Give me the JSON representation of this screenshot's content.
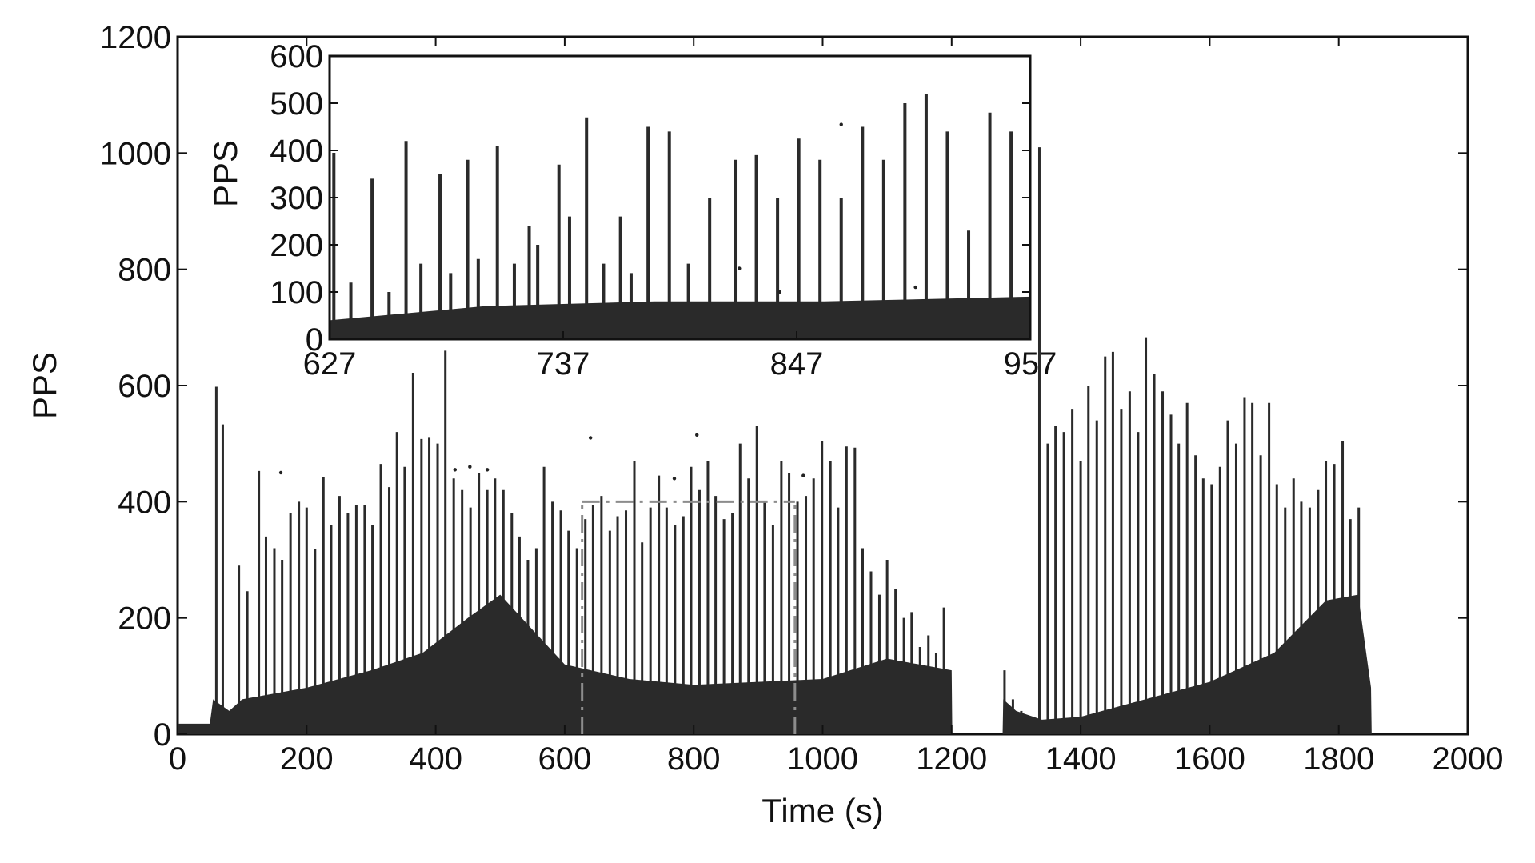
{
  "chart_data": [
    {
      "type": "bar",
      "title": "",
      "xlabel": "Time (s)",
      "ylabel": "PPS",
      "xlim": [
        0,
        2000
      ],
      "ylim": [
        0,
        1200
      ],
      "xticks": [
        "0",
        "200",
        "400",
        "600",
        "800",
        "1000",
        "1200",
        "1400",
        "1600",
        "1800",
        "2000"
      ],
      "yticks": [
        "0",
        "200",
        "400",
        "600",
        "800",
        "1000",
        "1200"
      ],
      "grid": false,
      "legend": "none",
      "bar_color": "#2a2a2a",
      "highlight_window": {
        "x": [
          627,
          957
        ],
        "y": [
          0,
          400
        ],
        "color": "#8c8c8c"
      },
      "peaks": [
        {
          "x": 60,
          "y": 598
        },
        {
          "x": 70,
          "y": 533
        },
        {
          "x": 95,
          "y": 290
        },
        {
          "x": 108,
          "y": 246
        },
        {
          "x": 126,
          "y": 453
        },
        {
          "x": 137,
          "y": 340
        },
        {
          "x": 150,
          "y": 320
        },
        {
          "x": 162,
          "y": 300
        },
        {
          "x": 175,
          "y": 380
        },
        {
          "x": 188,
          "y": 400
        },
        {
          "x": 200,
          "y": 390
        },
        {
          "x": 213,
          "y": 318
        },
        {
          "x": 226,
          "y": 443
        },
        {
          "x": 238,
          "y": 360
        },
        {
          "x": 251,
          "y": 410
        },
        {
          "x": 264,
          "y": 380
        },
        {
          "x": 277,
          "y": 395
        },
        {
          "x": 290,
          "y": 395
        },
        {
          "x": 302,
          "y": 360
        },
        {
          "x": 315,
          "y": 465
        },
        {
          "x": 328,
          "y": 425
        },
        {
          "x": 340,
          "y": 520
        },
        {
          "x": 352,
          "y": 460
        },
        {
          "x": 365,
          "y": 622
        },
        {
          "x": 378,
          "y": 508
        },
        {
          "x": 390,
          "y": 510
        },
        {
          "x": 403,
          "y": 500
        },
        {
          "x": 415,
          "y": 660
        },
        {
          "x": 428,
          "y": 440
        },
        {
          "x": 441,
          "y": 420
        },
        {
          "x": 454,
          "y": 390
        },
        {
          "x": 467,
          "y": 450
        },
        {
          "x": 480,
          "y": 420
        },
        {
          "x": 492,
          "y": 440
        },
        {
          "x": 505,
          "y": 420
        },
        {
          "x": 518,
          "y": 380
        },
        {
          "x": 530,
          "y": 340
        },
        {
          "x": 543,
          "y": 300
        },
        {
          "x": 556,
          "y": 320
        },
        {
          "x": 568,
          "y": 460
        },
        {
          "x": 581,
          "y": 400
        },
        {
          "x": 594,
          "y": 385
        },
        {
          "x": 606,
          "y": 350
        },
        {
          "x": 619,
          "y": 320
        },
        {
          "x": 632,
          "y": 370
        },
        {
          "x": 644,
          "y": 395
        },
        {
          "x": 657,
          "y": 410
        },
        {
          "x": 670,
          "y": 350
        },
        {
          "x": 682,
          "y": 375
        },
        {
          "x": 695,
          "y": 385
        },
        {
          "x": 708,
          "y": 470
        },
        {
          "x": 720,
          "y": 330
        },
        {
          "x": 733,
          "y": 390
        },
        {
          "x": 746,
          "y": 445
        },
        {
          "x": 758,
          "y": 390
        },
        {
          "x": 771,
          "y": 360
        },
        {
          "x": 784,
          "y": 375
        },
        {
          "x": 796,
          "y": 460
        },
        {
          "x": 809,
          "y": 420
        },
        {
          "x": 822,
          "y": 470
        },
        {
          "x": 834,
          "y": 410
        },
        {
          "x": 847,
          "y": 370
        },
        {
          "x": 860,
          "y": 380
        },
        {
          "x": 872,
          "y": 500
        },
        {
          "x": 885,
          "y": 440
        },
        {
          "x": 898,
          "y": 530
        },
        {
          "x": 910,
          "y": 400
        },
        {
          "x": 923,
          "y": 360
        },
        {
          "x": 936,
          "y": 470
        },
        {
          "x": 948,
          "y": 450
        },
        {
          "x": 961,
          "y": 400
        },
        {
          "x": 974,
          "y": 410
        },
        {
          "x": 986,
          "y": 440
        },
        {
          "x": 999,
          "y": 505
        },
        {
          "x": 1012,
          "y": 470
        },
        {
          "x": 1024,
          "y": 390
        },
        {
          "x": 1037,
          "y": 495
        },
        {
          "x": 1050,
          "y": 493
        },
        {
          "x": 1062,
          "y": 320
        },
        {
          "x": 1075,
          "y": 280
        },
        {
          "x": 1088,
          "y": 240
        },
        {
          "x": 1100,
          "y": 300
        },
        {
          "x": 1113,
          "y": 250
        },
        {
          "x": 1126,
          "y": 200
        },
        {
          "x": 1138,
          "y": 210
        },
        {
          "x": 1151,
          "y": 150
        },
        {
          "x": 1164,
          "y": 170
        },
        {
          "x": 1176,
          "y": 140
        },
        {
          "x": 1188,
          "y": 218
        },
        {
          "x": 1282,
          "y": 110
        },
        {
          "x": 1295,
          "y": 60
        },
        {
          "x": 1308,
          "y": 40
        },
        {
          "x": 1336,
          "y": 1010
        },
        {
          "x": 1349,
          "y": 500
        },
        {
          "x": 1361,
          "y": 530
        },
        {
          "x": 1374,
          "y": 520
        },
        {
          "x": 1387,
          "y": 560
        },
        {
          "x": 1400,
          "y": 470
        },
        {
          "x": 1412,
          "y": 600
        },
        {
          "x": 1425,
          "y": 540
        },
        {
          "x": 1438,
          "y": 650
        },
        {
          "x": 1450,
          "y": 658
        },
        {
          "x": 1463,
          "y": 560
        },
        {
          "x": 1476,
          "y": 590
        },
        {
          "x": 1489,
          "y": 520
        },
        {
          "x": 1501,
          "y": 683
        },
        {
          "x": 1514,
          "y": 620
        },
        {
          "x": 1527,
          "y": 590
        },
        {
          "x": 1540,
          "y": 550
        },
        {
          "x": 1552,
          "y": 500
        },
        {
          "x": 1565,
          "y": 570
        },
        {
          "x": 1578,
          "y": 480
        },
        {
          "x": 1590,
          "y": 440
        },
        {
          "x": 1603,
          "y": 430
        },
        {
          "x": 1616,
          "y": 460
        },
        {
          "x": 1628,
          "y": 540
        },
        {
          "x": 1641,
          "y": 500
        },
        {
          "x": 1654,
          "y": 580
        },
        {
          "x": 1666,
          "y": 570
        },
        {
          "x": 1679,
          "y": 480
        },
        {
          "x": 1692,
          "y": 570
        },
        {
          "x": 1704,
          "y": 430
        },
        {
          "x": 1717,
          "y": 390
        },
        {
          "x": 1730,
          "y": 440
        },
        {
          "x": 1742,
          "y": 400
        },
        {
          "x": 1755,
          "y": 390
        },
        {
          "x": 1768,
          "y": 420
        },
        {
          "x": 1780,
          "y": 470
        },
        {
          "x": 1793,
          "y": 465
        },
        {
          "x": 1806,
          "y": 505
        },
        {
          "x": 1818,
          "y": 370
        },
        {
          "x": 1831,
          "y": 390
        }
      ],
      "baseline": [
        {
          "x": 0,
          "y": 18
        },
        {
          "x": 50,
          "y": 18
        },
        {
          "x": 55,
          "y": 60
        },
        {
          "x": 80,
          "y": 40
        },
        {
          "x": 100,
          "y": 60
        },
        {
          "x": 200,
          "y": 80
        },
        {
          "x": 300,
          "y": 110
        },
        {
          "x": 380,
          "y": 140
        },
        {
          "x": 450,
          "y": 200
        },
        {
          "x": 500,
          "y": 240
        },
        {
          "x": 550,
          "y": 180
        },
        {
          "x": 600,
          "y": 120
        },
        {
          "x": 700,
          "y": 95
        },
        {
          "x": 800,
          "y": 85
        },
        {
          "x": 900,
          "y": 90
        },
        {
          "x": 1000,
          "y": 95
        },
        {
          "x": 1100,
          "y": 130
        },
        {
          "x": 1150,
          "y": 120
        },
        {
          "x": 1200,
          "y": 110
        },
        {
          "x": 1201,
          "y": 0
        },
        {
          "x": 1279,
          "y": 0
        },
        {
          "x": 1280,
          "y": 60
        },
        {
          "x": 1300,
          "y": 40
        },
        {
          "x": 1340,
          "y": 25
        },
        {
          "x": 1400,
          "y": 30
        },
        {
          "x": 1500,
          "y": 60
        },
        {
          "x": 1600,
          "y": 90
        },
        {
          "x": 1700,
          "y": 140
        },
        {
          "x": 1780,
          "y": 230
        },
        {
          "x": 1830,
          "y": 240
        },
        {
          "x": 1850,
          "y": 80
        },
        {
          "x": 1851,
          "y": 0
        }
      ],
      "scatter": [
        {
          "x": 160,
          "y": 450
        },
        {
          "x": 430,
          "y": 455
        },
        {
          "x": 453,
          "y": 460
        },
        {
          "x": 480,
          "y": 455
        },
        {
          "x": 640,
          "y": 510
        },
        {
          "x": 805,
          "y": 515
        },
        {
          "x": 770,
          "y": 440
        },
        {
          "x": 970,
          "y": 445
        }
      ]
    },
    {
      "type": "bar",
      "title": "",
      "xlabel": "",
      "ylabel": "PPS",
      "xlim": [
        627,
        957
      ],
      "ylim": [
        0,
        600
      ],
      "xticks": [
        "627",
        "737",
        "847",
        "957"
      ],
      "yticks": [
        "0",
        "100",
        "200",
        "300",
        "400",
        "500",
        "600"
      ],
      "grid": false,
      "legend": "none",
      "bar_color": "#2a2a2a",
      "peaks": [
        {
          "x": 629,
          "y": 395
        },
        {
          "x": 637,
          "y": 120
        },
        {
          "x": 647,
          "y": 340
        },
        {
          "x": 655,
          "y": 100
        },
        {
          "x": 663,
          "y": 420
        },
        {
          "x": 670,
          "y": 160
        },
        {
          "x": 679,
          "y": 350
        },
        {
          "x": 684,
          "y": 140
        },
        {
          "x": 692,
          "y": 380
        },
        {
          "x": 697,
          "y": 170
        },
        {
          "x": 706,
          "y": 410
        },
        {
          "x": 714,
          "y": 160
        },
        {
          "x": 721,
          "y": 240
        },
        {
          "x": 725,
          "y": 200
        },
        {
          "x": 735,
          "y": 370
        },
        {
          "x": 740,
          "y": 260
        },
        {
          "x": 748,
          "y": 470
        },
        {
          "x": 756,
          "y": 160
        },
        {
          "x": 764,
          "y": 260
        },
        {
          "x": 769,
          "y": 140
        },
        {
          "x": 777,
          "y": 450
        },
        {
          "x": 787,
          "y": 440
        },
        {
          "x": 796,
          "y": 160
        },
        {
          "x": 806,
          "y": 300
        },
        {
          "x": 818,
          "y": 380
        },
        {
          "x": 828,
          "y": 390
        },
        {
          "x": 838,
          "y": 300
        },
        {
          "x": 848,
          "y": 425
        },
        {
          "x": 858,
          "y": 380
        },
        {
          "x": 868,
          "y": 300
        },
        {
          "x": 878,
          "y": 450
        },
        {
          "x": 888,
          "y": 380
        },
        {
          "x": 898,
          "y": 500
        },
        {
          "x": 908,
          "y": 520
        },
        {
          "x": 918,
          "y": 440
        },
        {
          "x": 928,
          "y": 230
        },
        {
          "x": 938,
          "y": 480
        },
        {
          "x": 948,
          "y": 440
        }
      ],
      "baseline": [
        {
          "x": 627,
          "y": 40
        },
        {
          "x": 700,
          "y": 70
        },
        {
          "x": 780,
          "y": 80
        },
        {
          "x": 860,
          "y": 80
        },
        {
          "x": 957,
          "y": 90
        }
      ],
      "scatter": [
        {
          "x": 868,
          "y": 455
        },
        {
          "x": 839,
          "y": 100
        },
        {
          "x": 903,
          "y": 110
        },
        {
          "x": 820,
          "y": 150
        }
      ]
    }
  ]
}
